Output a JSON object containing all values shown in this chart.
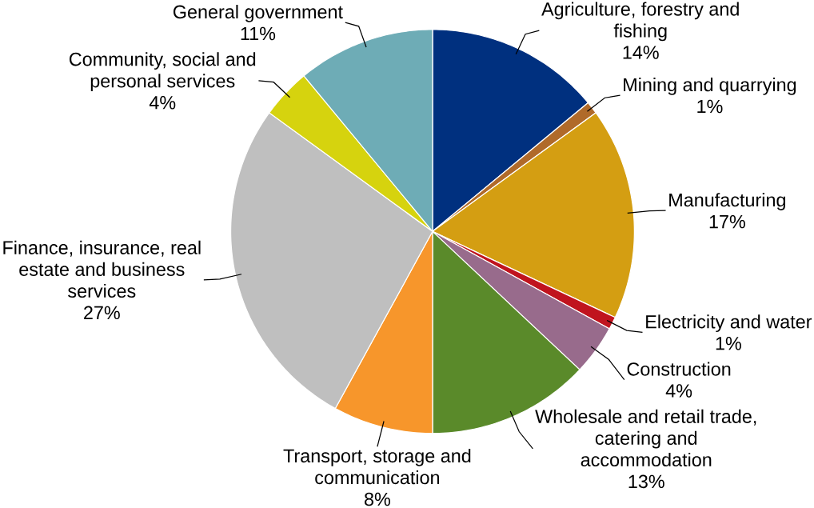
{
  "chart_data": {
    "type": "pie",
    "categories": [
      "Agriculture, forestry and fishing",
      "Mining and quarrying",
      "Manufacturing",
      "Electricity and water",
      "Construction",
      "Wholesale and retail trade, catering and accommodation",
      "Transport, storage and communication",
      "Finance, insurance, real estate and business services",
      "Community, social and personal services",
      "General government"
    ],
    "values": [
      14,
      1,
      17,
      1,
      4,
      13,
      8,
      27,
      4,
      11
    ],
    "value_labels": [
      "14%",
      "1%",
      "17%",
      "1%",
      "4%",
      "13%",
      "8%",
      "27%",
      "4%",
      "11%"
    ],
    "colors": [
      "#00307f",
      "#b06a2a",
      "#d49e12",
      "#c0141e",
      "#986b8c",
      "#5a8a2a",
      "#f7962b",
      "#bfbfbf",
      "#d6d30e",
      "#6eacb6"
    ]
  }
}
